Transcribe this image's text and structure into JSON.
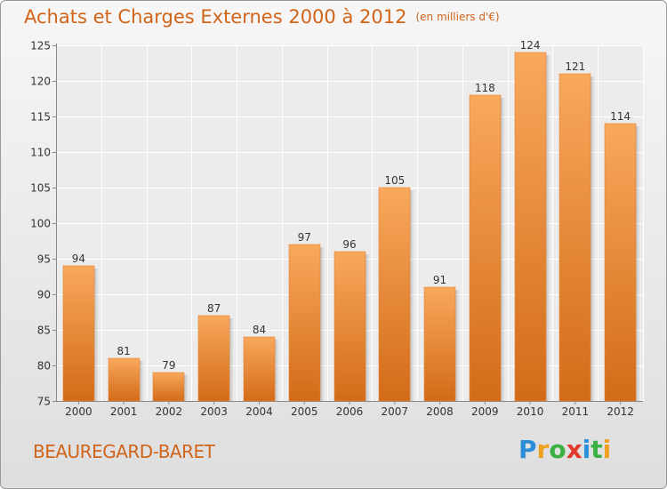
{
  "title": "Achats et Charges Externes 2000 à 2012",
  "unit": "(en milliers d'€)",
  "commune": "BEAUREGARD-BARET",
  "logo": {
    "letters": [
      "P",
      "r",
      "o",
      "x",
      "i",
      "t",
      "i"
    ],
    "colors": [
      "#2a8fd8",
      "#f0a020",
      "#3cb043",
      "#e23a2a",
      "#2a8fd8",
      "#3cb043",
      "#f0a020"
    ]
  },
  "colors": {
    "accent": "#d0641a",
    "bar_top": "#f9a85c",
    "bar_bottom": "#d26b18"
  },
  "chart_data": {
    "type": "bar",
    "title": "Achats et Charges Externes 2000 à 2012",
    "subtitle": "(en milliers d'€)",
    "categories": [
      "2000",
      "2001",
      "2002",
      "2003",
      "2004",
      "2005",
      "2006",
      "2007",
      "2008",
      "2009",
      "2010",
      "2011",
      "2012"
    ],
    "values": [
      94,
      81,
      79,
      87,
      84,
      97,
      96,
      105,
      91,
      118,
      124,
      121,
      114
    ],
    "ylim": [
      75,
      125
    ],
    "yticks": [
      75,
      80,
      85,
      90,
      95,
      100,
      105,
      110,
      115,
      120,
      125
    ],
    "grid": true,
    "legend": "none"
  }
}
